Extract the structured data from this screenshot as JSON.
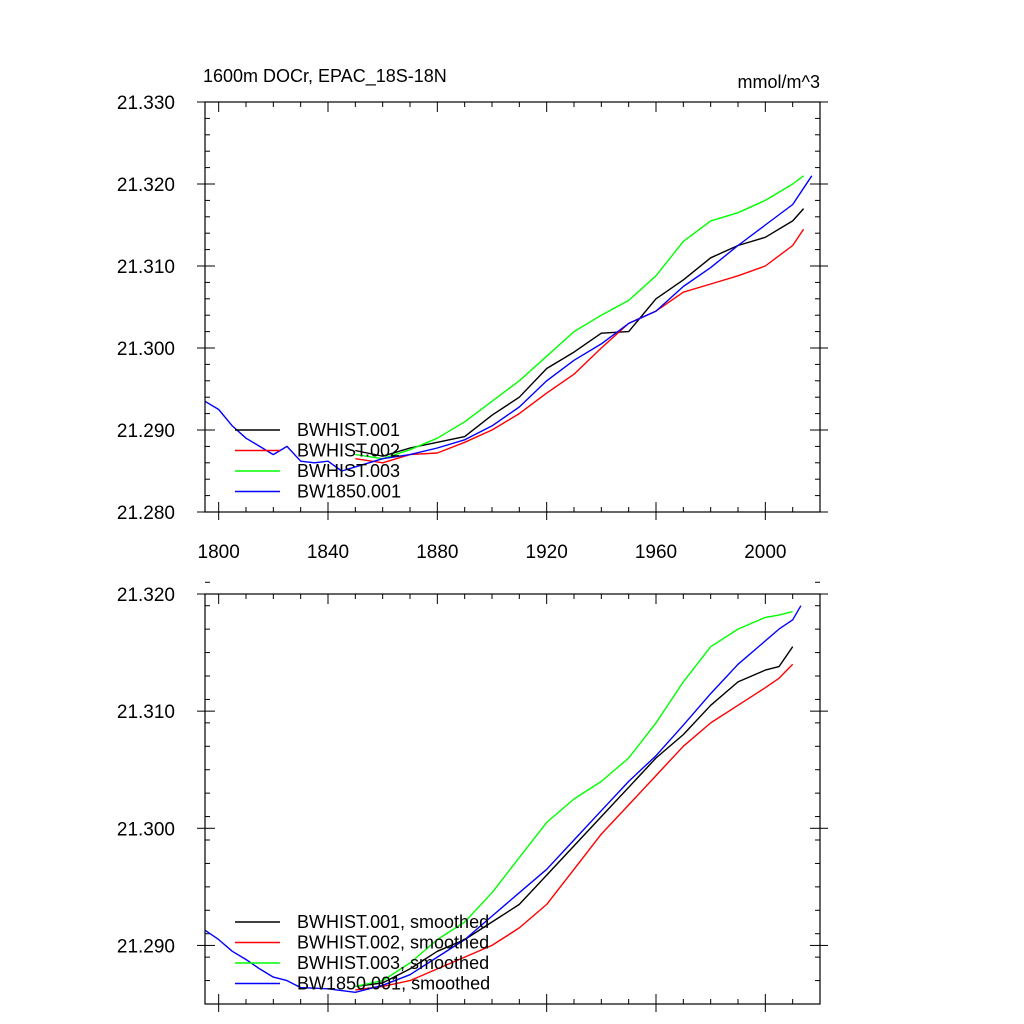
{
  "chart_data": [
    {
      "type": "line",
      "title": "1600m DOCr, EPAC_18S-18N",
      "units": "mmol/m^3",
      "xlabel": "",
      "ylabel": "",
      "xlim": [
        1795,
        2020
      ],
      "ylim": [
        21.28,
        21.33
      ],
      "xticks": [
        "1800",
        "1840",
        "1880",
        "1920",
        "1960",
        "2000"
      ],
      "yticks": [
        "21.280",
        "21.290",
        "21.300",
        "21.310",
        "21.320",
        "21.330"
      ],
      "legend_position": "bottom-left",
      "series": [
        {
          "name": "BWHIST.001",
          "color": "#000000",
          "x": [
            1850,
            1860,
            1870,
            1880,
            1890,
            1900,
            1910,
            1920,
            1930,
            1940,
            1950,
            1960,
            1970,
            1980,
            1990,
            2000,
            2010,
            2014
          ],
          "y": [
            21.2875,
            21.2868,
            21.2878,
            21.2885,
            21.2892,
            21.2918,
            21.294,
            21.2975,
            21.2995,
            21.3018,
            21.302,
            21.306,
            21.3083,
            21.311,
            21.3125,
            21.3135,
            21.3155,
            21.317
          ]
        },
        {
          "name": "BWHIST.002",
          "color": "#ff0000",
          "x": [
            1850,
            1860,
            1870,
            1880,
            1890,
            1900,
            1910,
            1920,
            1930,
            1940,
            1950,
            1960,
            1970,
            1980,
            1990,
            2000,
            2010,
            2014
          ],
          "y": [
            21.2865,
            21.286,
            21.287,
            21.2872,
            21.2885,
            21.29,
            21.292,
            21.2945,
            21.2968,
            21.3,
            21.303,
            21.3045,
            21.3068,
            21.3078,
            21.3088,
            21.31,
            21.3125,
            21.3145
          ]
        },
        {
          "name": "BWHIST.003",
          "color": "#00ff00",
          "x": [
            1850,
            1860,
            1870,
            1880,
            1890,
            1900,
            1910,
            1920,
            1930,
            1940,
            1950,
            1960,
            1970,
            1980,
            1990,
            2000,
            2010,
            2014
          ],
          "y": [
            21.287,
            21.2865,
            21.2876,
            21.289,
            21.291,
            21.2935,
            21.296,
            21.299,
            21.302,
            21.304,
            21.3058,
            21.3088,
            21.313,
            21.3155,
            21.3165,
            21.318,
            21.32,
            21.321
          ]
        },
        {
          "name": "BW1850.001",
          "color": "#0000ff",
          "x": [
            1795,
            1800,
            1805,
            1810,
            1815,
            1820,
            1825,
            1830,
            1835,
            1840,
            1845,
            1850,
            1860,
            1870,
            1880,
            1890,
            1900,
            1910,
            1920,
            1930,
            1940,
            1950,
            1960,
            1970,
            1980,
            1990,
            2000,
            2010,
            2017
          ],
          "y": [
            21.2935,
            21.2925,
            21.2905,
            21.289,
            21.288,
            21.287,
            21.288,
            21.2862,
            21.286,
            21.2862,
            21.285,
            21.2855,
            21.2865,
            21.287,
            21.2878,
            21.2888,
            21.2905,
            21.2928,
            21.296,
            21.2985,
            21.3005,
            21.303,
            21.3045,
            21.3075,
            21.3098,
            21.3125,
            21.315,
            21.3175,
            21.321
          ]
        }
      ]
    },
    {
      "type": "line",
      "title": "",
      "xlabel": "",
      "ylabel": "",
      "xlim": [
        1795,
        2020
      ],
      "ylim": [
        21.285,
        21.32
      ],
      "xticks": [],
      "yticks": [
        "21.290",
        "21.300",
        "21.310",
        "21.320"
      ],
      "legend_position": "bottom-left",
      "series": [
        {
          "name": "BWHIST.001, smoothed",
          "color": "#000000",
          "x": [
            1850,
            1860,
            1870,
            1880,
            1890,
            1900,
            1910,
            1920,
            1930,
            1940,
            1950,
            1960,
            1970,
            1980,
            1990,
            2000,
            2005,
            2010
          ],
          "y": [
            21.2865,
            21.2868,
            21.288,
            21.2895,
            21.2905,
            21.292,
            21.2935,
            21.296,
            21.2985,
            21.301,
            21.3035,
            21.306,
            21.308,
            21.3105,
            21.3125,
            21.3135,
            21.3138,
            21.3155
          ]
        },
        {
          "name": "BWHIST.002, smoothed",
          "color": "#ff0000",
          "x": [
            1850,
            1860,
            1870,
            1880,
            1890,
            1900,
            1910,
            1920,
            1930,
            1940,
            1950,
            1960,
            1970,
            1980,
            1990,
            2000,
            2005,
            2010
          ],
          "y": [
            21.2862,
            21.2865,
            21.287,
            21.288,
            21.289,
            21.29,
            21.2915,
            21.2935,
            21.2965,
            21.2995,
            21.302,
            21.3045,
            21.307,
            21.309,
            21.3105,
            21.312,
            21.3128,
            21.314
          ]
        },
        {
          "name": "BWHIST.003, smoothed",
          "color": "#00ff00",
          "x": [
            1850,
            1860,
            1870,
            1880,
            1890,
            1900,
            1910,
            1920,
            1930,
            1940,
            1950,
            1960,
            1970,
            1980,
            1990,
            2000,
            2005,
            2010
          ],
          "y": [
            21.2865,
            21.287,
            21.2885,
            21.2905,
            21.292,
            21.2945,
            21.2975,
            21.3005,
            21.3025,
            21.304,
            21.306,
            21.309,
            21.3125,
            21.3155,
            21.317,
            21.318,
            21.3182,
            21.3185
          ]
        },
        {
          "name": "BW1850.001, smoothed",
          "color": "#0000ff",
          "x": [
            1795,
            1800,
            1805,
            1810,
            1815,
            1820,
            1825,
            1830,
            1840,
            1850,
            1860,
            1870,
            1880,
            1890,
            1900,
            1910,
            1920,
            1930,
            1940,
            1950,
            1960,
            1970,
            1980,
            1990,
            2000,
            2005,
            2010,
            2013
          ],
          "y": [
            21.2913,
            21.2905,
            21.2895,
            21.2888,
            21.288,
            21.2873,
            21.287,
            21.2864,
            21.2863,
            21.286,
            21.2866,
            21.2875,
            21.289,
            21.2905,
            21.2925,
            21.2945,
            21.2965,
            21.299,
            21.3015,
            21.304,
            21.3062,
            21.3088,
            21.3115,
            21.314,
            21.316,
            21.317,
            21.3178,
            21.319
          ]
        }
      ]
    }
  ]
}
